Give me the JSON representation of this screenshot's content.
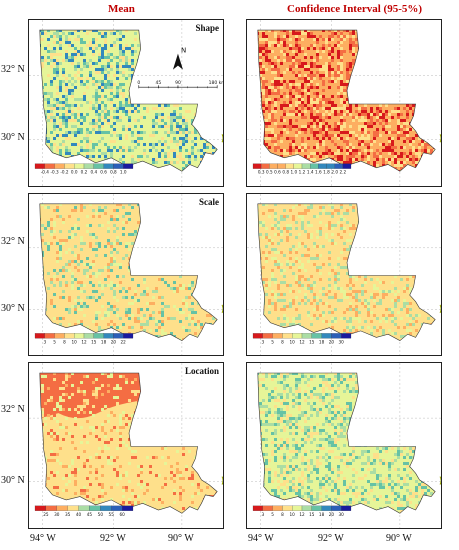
{
  "columns": {
    "mean": "Mean",
    "ci": "Confidence Interval (95-5%)"
  },
  "rows": [
    "Shape",
    "Scale",
    "Location"
  ],
  "y_axis_labels": [
    "32° N",
    "30° N"
  ],
  "x_axis_labels": [
    "94° W",
    "92° W",
    "90° W"
  ],
  "north_arrow_letter": "N",
  "scale_bar": {
    "ticks": [
      "0",
      "45",
      "90",
      "180 km"
    ]
  },
  "legends": {
    "shape_mean": [
      "-0.4",
      "-0.3",
      "-0.2",
      "0.0",
      "0.2",
      "0.4",
      "0.6",
      "0.8",
      "1.0"
    ],
    "shape_ci": [
      "0.3",
      "0.5",
      "0.6",
      "0.8",
      "1.0",
      "1.2",
      "1.4",
      "1.6",
      "1.8",
      "2.0",
      "2.2"
    ],
    "scale_mean": [
      "3",
      "5",
      "8",
      "10",
      "12",
      "15",
      "18",
      "20",
      "22"
    ],
    "scale_ci": [
      "3",
      "5",
      "8",
      "10",
      "12",
      "15",
      "18",
      "20",
      "30"
    ],
    "location_mean": [
      "25",
      "30",
      "35",
      "40",
      "45",
      "50",
      "55",
      "60"
    ],
    "location_ci": [
      "3",
      "5",
      "8",
      "10",
      "12",
      "15",
      "18",
      "20",
      "30"
    ]
  },
  "colors": {
    "title_red": "#c00000",
    "ramp": [
      "#d7191c",
      "#f46d43",
      "#fdae61",
      "#fee08b",
      "#e6f598",
      "#abdda4",
      "#66c2a5",
      "#3288bd",
      "#2b5fb8",
      "#1a1a9e"
    ]
  }
}
